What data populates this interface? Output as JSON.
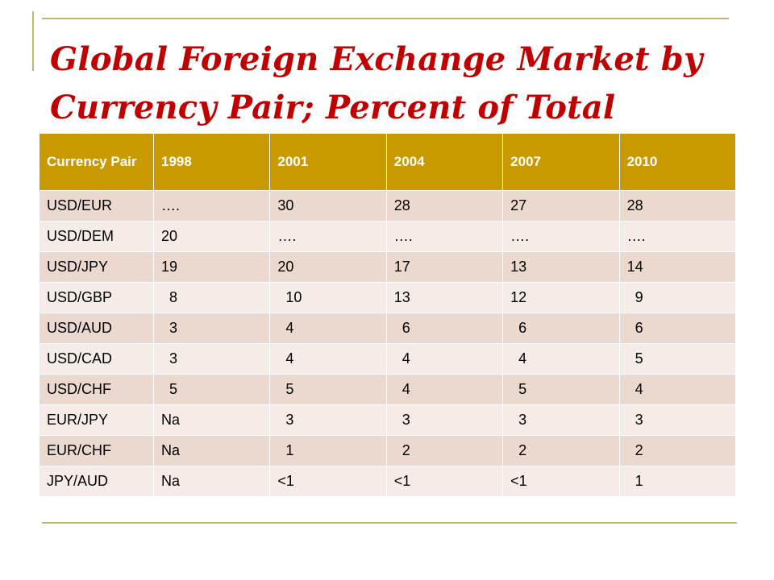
{
  "slide": {
    "title": "Global Foreign Exchange Market by Currency Pair; Percent of Total"
  },
  "table": {
    "headers": [
      "Currency Pair",
      "1998",
      "2001",
      "2004",
      "2007",
      "2010"
    ],
    "rows": [
      [
        "USD/EUR",
        "….",
        "30",
        "28",
        "27",
        "28"
      ],
      [
        "USD/DEM",
        "20",
        "….",
        "….",
        "….",
        "…."
      ],
      [
        "USD/JPY",
        "19",
        "20",
        "17",
        "13",
        "14"
      ],
      [
        "USD/GBP",
        "  8",
        "  10",
        "13",
        "12",
        "  9"
      ],
      [
        "USD/AUD",
        "  3",
        "  4",
        "  6",
        "  6",
        "  6"
      ],
      [
        "USD/CAD",
        "  3",
        "  4",
        "  4",
        "  4",
        "  5"
      ],
      [
        "USD/CHF",
        "  5",
        "  5",
        "  4",
        "  5",
        "  4"
      ],
      [
        "EUR/JPY",
        "Na",
        "  3",
        "  3",
        "  3",
        "  3"
      ],
      [
        "EUR/CHF",
        "Na",
        "  1",
        "  2",
        "  2",
        "  2"
      ],
      [
        "JPY/AUD",
        "Na",
        "<1",
        "<1",
        "<1",
        "  1"
      ]
    ]
  },
  "colors": {
    "title": "#c00000",
    "header_bg": "#c99a00",
    "row_odd": "#ebd9cf",
    "row_even": "#f5ece8",
    "accent_rule": "#c7b27a"
  }
}
